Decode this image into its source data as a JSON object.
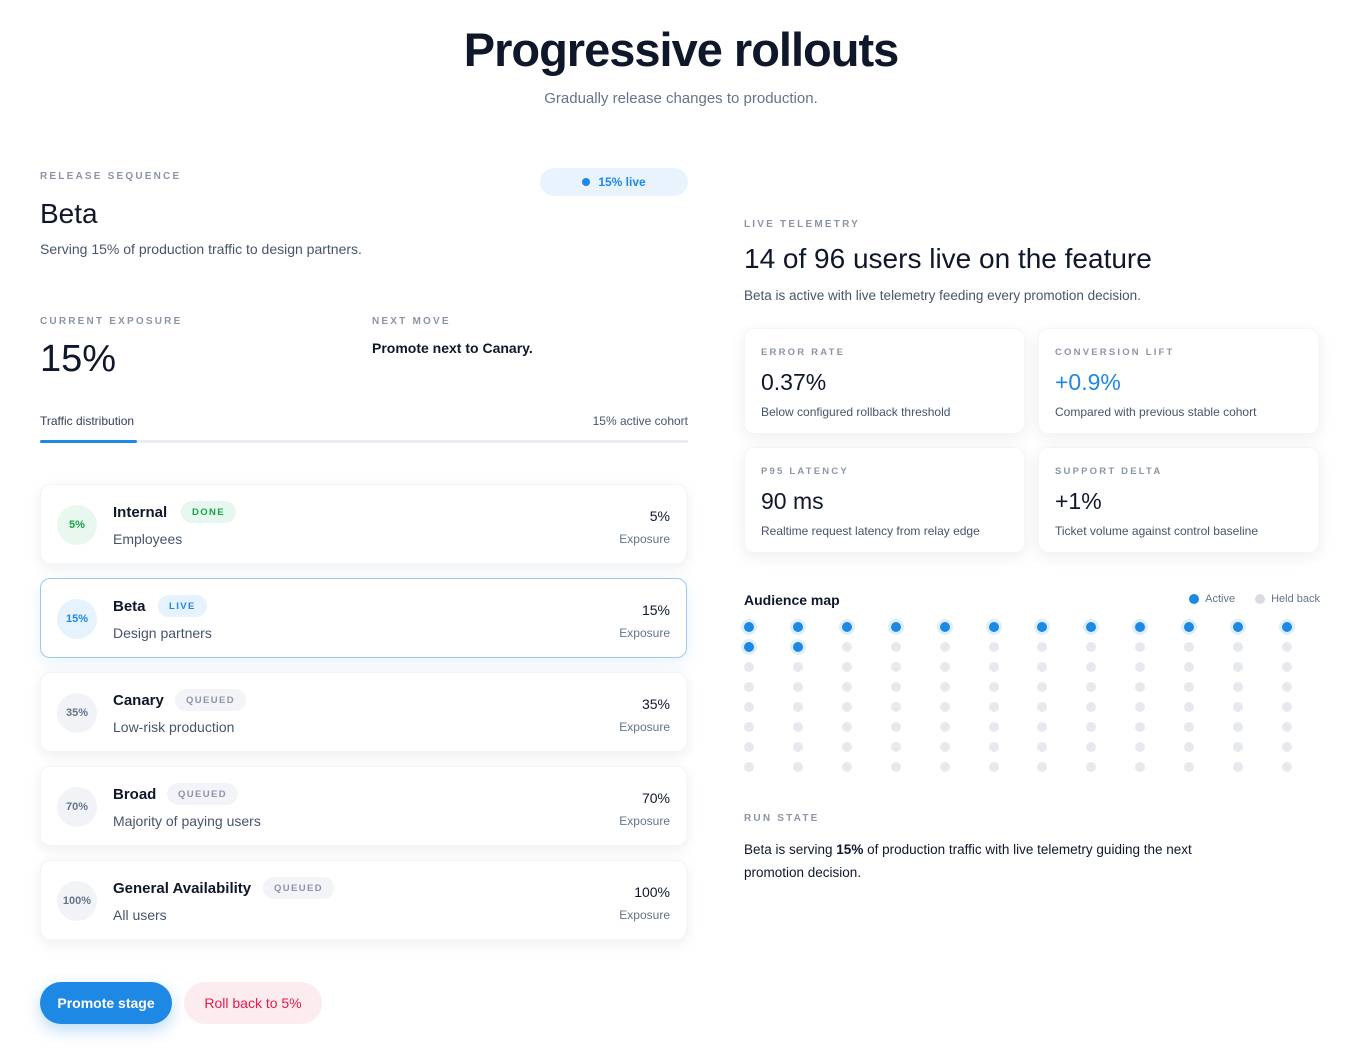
{
  "hero": {
    "title": "Progressive rollouts",
    "subtitle": "Gradually release changes to production."
  },
  "release": {
    "eyebrow": "RELEASE SEQUENCE",
    "live_pill": "15% live",
    "stage_title": "Beta",
    "stage_desc": "Serving 15% of production traffic to design partners.",
    "exposure_eyebrow": "CURRENT EXPOSURE",
    "exposure_value": "15%",
    "next_eyebrow": "NEXT MOVE",
    "next_value": "Promote next to Canary.",
    "distribution_label": "Traffic distribution",
    "distribution_cohort": "15% active cohort",
    "distribution_fraction": 0.15
  },
  "stages": [
    {
      "badge": "5%",
      "name": "Internal",
      "tag": "DONE",
      "status": "done",
      "sub": "Employees",
      "pct": "5%",
      "exp": "Exposure"
    },
    {
      "badge": "15%",
      "name": "Beta",
      "tag": "LIVE",
      "status": "live",
      "sub": "Design partners",
      "pct": "15%",
      "exp": "Exposure"
    },
    {
      "badge": "35%",
      "name": "Canary",
      "tag": "QUEUED",
      "status": "queued",
      "sub": "Low-risk production",
      "pct": "35%",
      "exp": "Exposure"
    },
    {
      "badge": "70%",
      "name": "Broad",
      "tag": "QUEUED",
      "status": "queued",
      "sub": "Majority of paying users",
      "pct": "70%",
      "exp": "Exposure"
    },
    {
      "badge": "100%",
      "name": "General Availability",
      "tag": "QUEUED",
      "status": "queued",
      "sub": "All users",
      "pct": "100%",
      "exp": "Exposure"
    }
  ],
  "actions": {
    "promote": "Promote stage",
    "rollback": "Roll back to 5%"
  },
  "telemetry": {
    "eyebrow": "LIVE TELEMETRY",
    "title": "14 of 96 users live on the feature",
    "desc": "Beta is active with live telemetry feeding every promotion decision.",
    "metrics": [
      {
        "label": "ERROR RATE",
        "value": "0.37%",
        "note": "Below configured rollback threshold",
        "accent": false
      },
      {
        "label": "CONVERSION LIFT",
        "value": "+0.9%",
        "note": "Compared with previous stable cohort",
        "accent": true
      },
      {
        "label": "P95 LATENCY",
        "value": "90 ms",
        "note": "Realtime request latency from relay edge",
        "accent": false
      },
      {
        "label": "SUPPORT DELTA",
        "value": "+1%",
        "note": "Ticket volume against control baseline",
        "accent": false
      }
    ]
  },
  "audience": {
    "title": "Audience map",
    "legend_active": "Active",
    "legend_held": "Held back",
    "total": 96,
    "active": 14,
    "columns": 12
  },
  "run_state": {
    "eyebrow": "RUN STATE",
    "prefix": "Beta is serving ",
    "highlight": "15%",
    "suffix": " of production traffic with live telemetry guiding the next promotion decision."
  },
  "colors": {
    "accent": "#1e88e5",
    "success": "#16a34a",
    "danger": "#e11d48",
    "held": "#e6e9ee"
  }
}
